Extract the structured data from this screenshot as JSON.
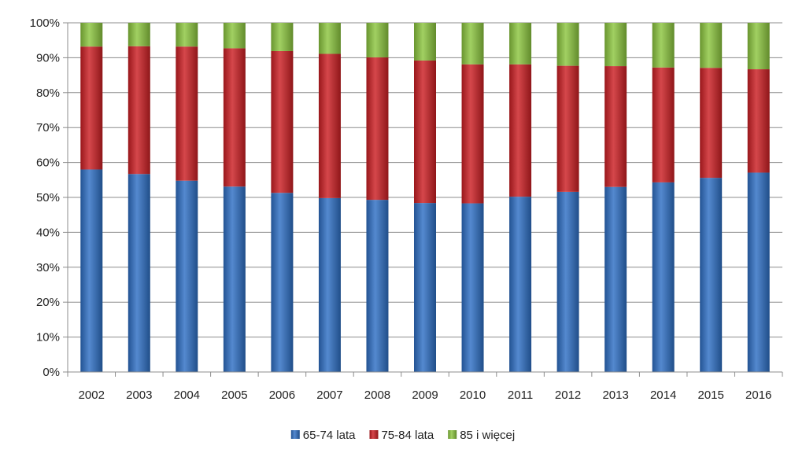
{
  "chart_data": {
    "type": "bar",
    "stacked": true,
    "percent_stacked": true,
    "categories": [
      "2002",
      "2003",
      "2004",
      "2005",
      "2006",
      "2007",
      "2008",
      "2009",
      "2010",
      "2011",
      "2012",
      "2013",
      "2014",
      "2015",
      "2016"
    ],
    "series": [
      {
        "name": "65-74 lata",
        "color": "#2E6FC4",
        "values": [
          58.0,
          56.7,
          54.8,
          53.1,
          51.3,
          49.8,
          49.3,
          48.4,
          48.3,
          50.2,
          51.6,
          53.0,
          54.3,
          55.6,
          57.1
        ]
      },
      {
        "name": "75-84 lata",
        "color": "#CC1F24",
        "values": [
          35.2,
          36.6,
          38.4,
          39.6,
          40.6,
          41.3,
          40.8,
          40.8,
          39.8,
          37.9,
          36.1,
          34.6,
          32.9,
          31.5,
          29.6
        ]
      },
      {
        "name": "85 i więcej",
        "color": "#8CC63F",
        "values": [
          6.8,
          6.7,
          6.8,
          7.3,
          8.1,
          8.9,
          9.9,
          10.8,
          11.9,
          11.9,
          12.3,
          12.4,
          12.8,
          12.9,
          13.3
        ]
      }
    ],
    "y_ticks": [
      "0%",
      "10%",
      "20%",
      "30%",
      "40%",
      "50%",
      "60%",
      "70%",
      "80%",
      "90%",
      "100%"
    ],
    "ylim": [
      0,
      100
    ],
    "grid": true,
    "legend_position": "bottom",
    "title": "",
    "xlabel": "",
    "ylabel": ""
  }
}
